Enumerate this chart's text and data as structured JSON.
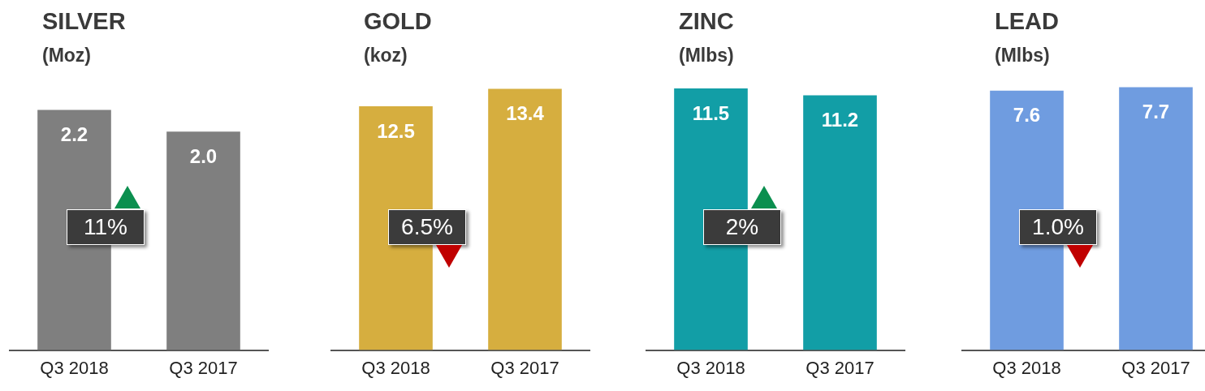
{
  "chart_data": [
    {
      "type": "bar",
      "title": "SILVER",
      "subtitle": "(Moz)",
      "categories": [
        "Q3 2018",
        "Q3 2017"
      ],
      "values": [
        2.2,
        2.0
      ],
      "value_labels": [
        "2.2",
        "2.0"
      ],
      "color": "#7f7f7f",
      "annotations": [
        "11%"
      ]
    },
    {
      "type": "bar",
      "title": "GOLD",
      "subtitle": "(koz)",
      "categories": [
        "Q3 2018",
        "Q3 2017"
      ],
      "values": [
        12.5,
        13.4
      ],
      "color": "#d6ae3f",
      "data_labels": true,
      "annotations": [
        "6.5%"
      ]
    },
    {
      "type": "bar",
      "title": "ZINC",
      "subtitle": "(Mlbs)",
      "categories": [
        "Q3 2018",
        "Q3 2017"
      ],
      "values": [
        11.5,
        11.2
      ],
      "color": "#129ea6",
      "data_labels": true,
      "annotations": [
        "2%"
      ]
    },
    {
      "type": "bar",
      "title": "LEAD",
      "subtitle": "(Mlbs)",
      "categories": [
        "Q3 2018",
        "Q3 2017"
      ],
      "values": [
        7.6,
        7.7
      ],
      "color": "#6f9ce0",
      "data_labels": true,
      "annotations": [
        "1.0%"
      ]
    }
  ]
}
